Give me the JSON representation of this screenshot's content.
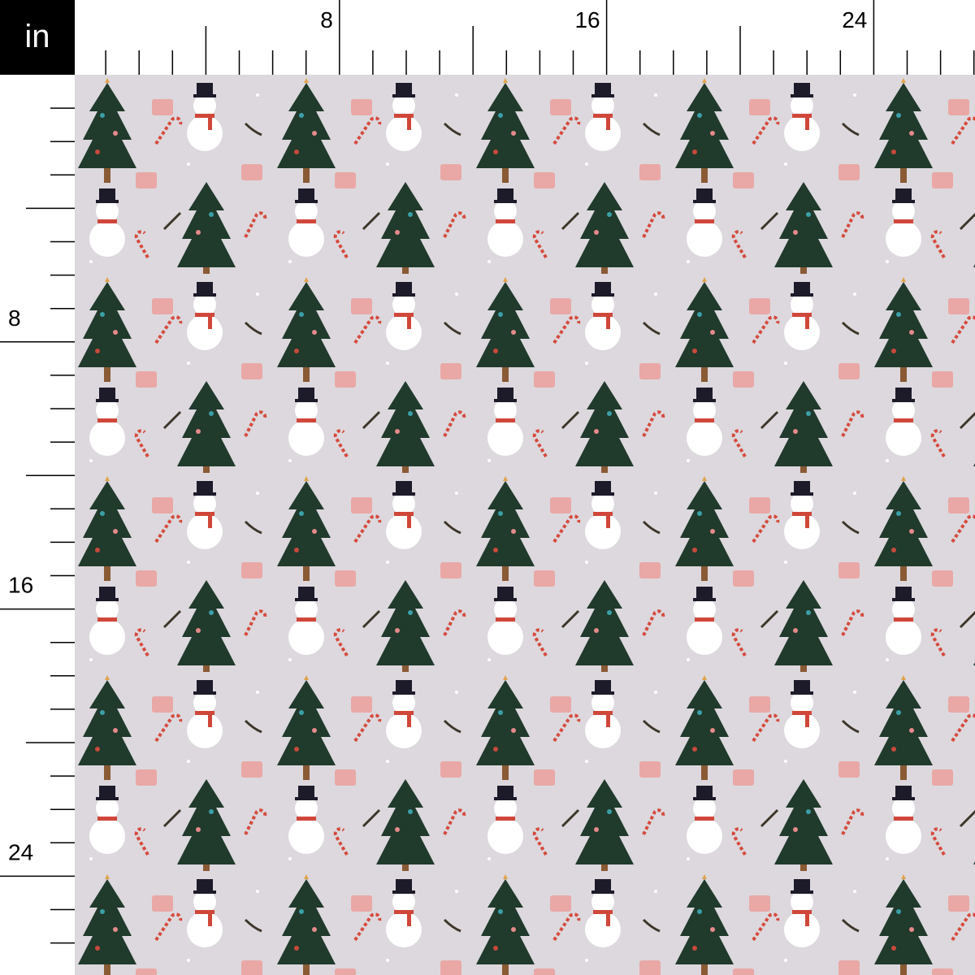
{
  "unit": "in",
  "top_ruler": {
    "labels": [
      8,
      16,
      24
    ]
  },
  "left_ruler": {
    "labels": [
      8,
      16,
      24
    ]
  }
}
